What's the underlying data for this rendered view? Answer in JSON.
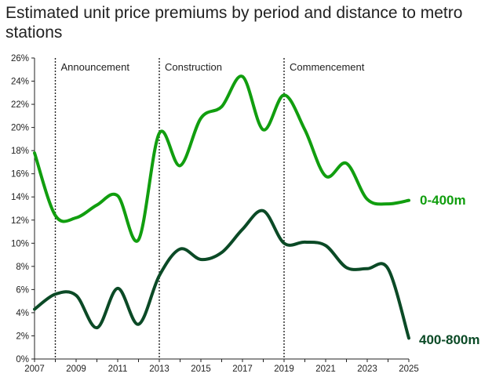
{
  "chart_data": {
    "type": "line",
    "title": "Estimated unit price premiums by period and distance to metro stations",
    "xlabel": "",
    "ylabel": "",
    "xlim": [
      2007,
      2025
    ],
    "ylim": [
      0,
      26
    ],
    "y_ticks": [
      "0%",
      "2%",
      "4%",
      "6%",
      "8%",
      "10%",
      "12%",
      "14%",
      "16%",
      "18%",
      "20%",
      "22%",
      "24%",
      "26%"
    ],
    "x_ticks": [
      "2007",
      "2009",
      "2011",
      "2013",
      "2015",
      "2017",
      "2019",
      "2021",
      "2023",
      "2025"
    ],
    "grid": false,
    "periods": [
      {
        "label": "Announcement",
        "x": 2008
      },
      {
        "label": "Construction",
        "x": 2013
      },
      {
        "label": "Commencement",
        "x": 2019
      }
    ],
    "series": [
      {
        "name": "0-400m",
        "color": "#119e0f",
        "points": [
          [
            2007.0,
            17.8
          ],
          [
            2008.0,
            12.4
          ],
          [
            2009.0,
            12.2
          ],
          [
            2010.0,
            13.3
          ],
          [
            2011.0,
            14.1
          ],
          [
            2012.0,
            10.3
          ],
          [
            2013.0,
            19.5
          ],
          [
            2014.0,
            16.7
          ],
          [
            2015.0,
            20.8
          ],
          [
            2016.0,
            21.8
          ],
          [
            2017.0,
            24.4
          ],
          [
            2018.0,
            19.8
          ],
          [
            2019.0,
            22.8
          ],
          [
            2020.0,
            19.8
          ],
          [
            2021.0,
            15.8
          ],
          [
            2022.0,
            16.9
          ],
          [
            2023.0,
            13.8
          ],
          [
            2024.0,
            13.4
          ],
          [
            2025.0,
            13.7
          ]
        ]
      },
      {
        "name": "400-800m",
        "color": "#0b4a26",
        "points": [
          [
            2007.0,
            4.3
          ],
          [
            2008.0,
            5.6
          ],
          [
            2009.0,
            5.5
          ],
          [
            2010.0,
            2.7
          ],
          [
            2011.0,
            6.1
          ],
          [
            2012.0,
            3.0
          ],
          [
            2013.0,
            7.2
          ],
          [
            2014.0,
            9.5
          ],
          [
            2015.0,
            8.6
          ],
          [
            2016.0,
            9.2
          ],
          [
            2017.0,
            11.2
          ],
          [
            2018.0,
            12.8
          ],
          [
            2019.0,
            10.0
          ],
          [
            2020.0,
            10.1
          ],
          [
            2021.0,
            9.8
          ],
          [
            2022.0,
            7.9
          ],
          [
            2023.0,
            7.8
          ],
          [
            2024.0,
            7.8
          ],
          [
            2025.0,
            1.8
          ]
        ]
      }
    ]
  }
}
